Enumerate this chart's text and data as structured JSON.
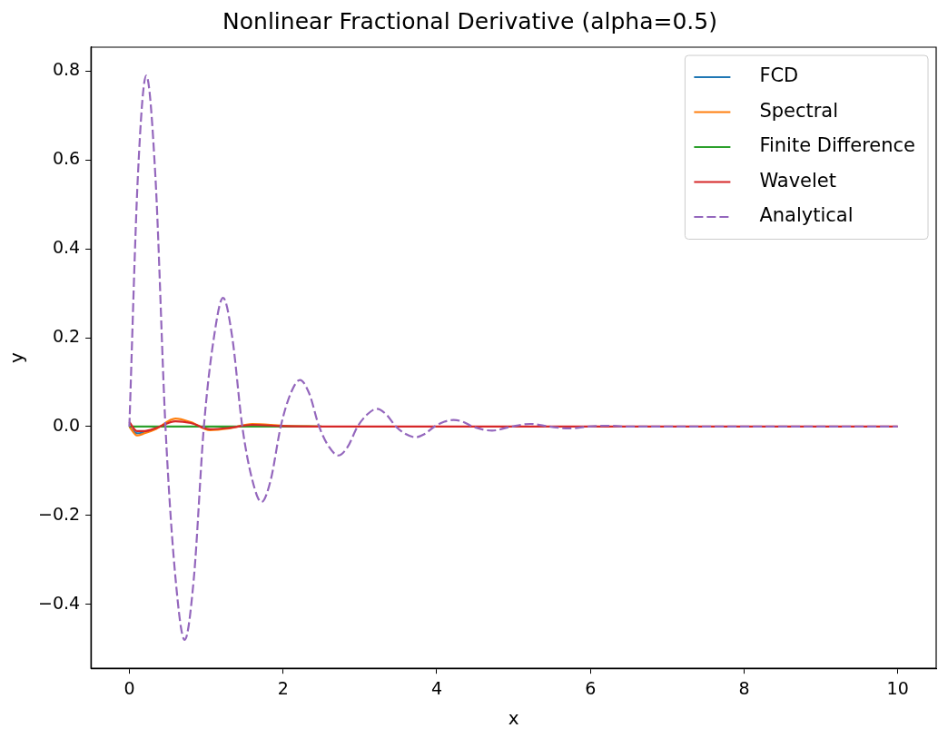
{
  "chart_data": {
    "type": "line",
    "title": "Nonlinear Fractional Derivative (alpha=0.5)",
    "xlabel": "x",
    "ylabel": "y",
    "xlim": [
      -0.5,
      10.5
    ],
    "xticks": [
      0,
      2,
      4,
      6,
      8,
      10
    ],
    "ylim": [
      -0.544,
      0.854
    ],
    "yticks": [
      {
        "value": -0.4,
        "label": "−0.4"
      },
      {
        "value": -0.2,
        "label": "−0.2"
      },
      {
        "value": 0,
        "label": "0.0"
      },
      0.2,
      0.4,
      0.6,
      0.8
    ],
    "grid": false,
    "legend": "top right",
    "marker": "none",
    "series": [
      {
        "name": "FCD",
        "color": "#1f77b4",
        "line_style": "solid",
        "x": [
          0,
          0.1,
          0.2
        ],
        "values": [
          0,
          -0.015,
          -0.013
        ]
      },
      {
        "name": "Spectral",
        "color": "#ff7f0e",
        "line_style": "solid",
        "x": [
          0,
          0.1,
          0.2,
          0.35,
          0.6,
          0.8,
          1.05,
          1.3,
          1.6,
          2.0,
          2.5
        ],
        "values": [
          0,
          -0.02,
          -0.015,
          -0.005,
          0.018,
          0.01,
          -0.008,
          -0.004,
          0.006,
          0.002,
          0
        ]
      },
      {
        "name": "Finite Difference",
        "color": "#2ca02c",
        "line_style": "solid",
        "x": [
          0,
          2.5
        ],
        "values": [
          0,
          0
        ]
      },
      {
        "name": "Wavelet",
        "color": "#d62728",
        "line_style": "solid",
        "x": [
          0,
          0.1,
          0.2,
          0.35,
          0.6,
          0.8,
          1.05,
          1.3,
          1.6,
          2.0,
          2.5,
          3,
          10
        ],
        "values": [
          0.01,
          -0.01,
          -0.01,
          -0.003,
          0.012,
          0.008,
          -0.006,
          -0.003,
          0.004,
          0.001,
          0,
          0,
          0
        ]
      },
      {
        "name": "Analytical",
        "color": "#9467bd",
        "line_style": "dashed",
        "x": [
          0,
          0.11,
          0.22,
          0.34,
          0.47,
          0.6,
          0.72,
          0.84,
          0.97,
          1.1,
          1.22,
          1.34,
          1.47,
          1.6,
          1.72,
          1.84,
          1.97,
          2.1,
          2.22,
          2.34,
          2.47,
          2.6,
          2.72,
          2.84,
          2.97,
          3.1,
          3.22,
          3.34,
          3.47,
          3.6,
          3.72,
          3.84,
          3.97,
          4.1,
          4.22,
          4.34,
          4.47,
          4.72,
          4.97,
          5.22,
          5.47,
          5.72,
          5.97,
          6.22,
          6.47,
          10
        ],
        "values": [
          0,
          0.56,
          0.79,
          0.56,
          0,
          -0.34,
          -0.48,
          -0.34,
          0,
          0.2,
          0.29,
          0.2,
          0,
          -0.12,
          -0.17,
          -0.12,
          0,
          0.075,
          0.105,
          0.075,
          0,
          -0.046,
          -0.065,
          -0.046,
          0,
          0.028,
          0.04,
          0.028,
          0,
          -0.017,
          -0.024,
          -0.017,
          0,
          0.011,
          0.015,
          0.011,
          0,
          -0.009,
          0,
          0.006,
          0,
          -0.004,
          0,
          0.002,
          0,
          0
        ]
      }
    ]
  }
}
